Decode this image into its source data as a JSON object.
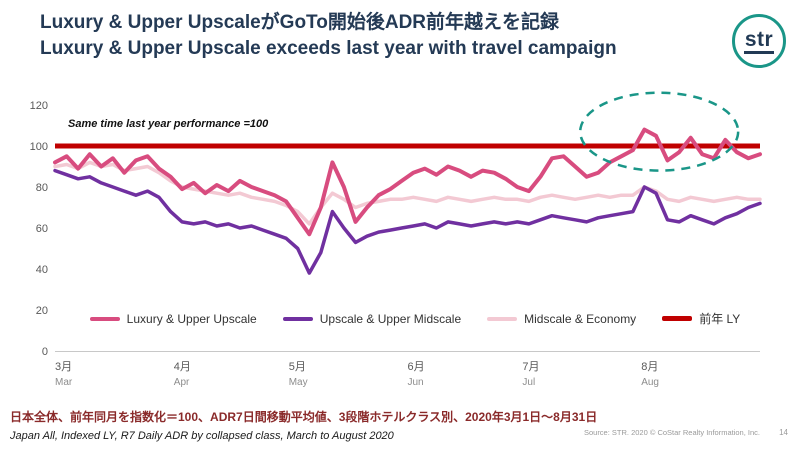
{
  "header": {
    "title_jp": "Luxury & Upper UpscaleがGoTo開始後ADR前年越えを記録",
    "title_en": "Luxury & Upper Upscale exceeds last year with travel campaign"
  },
  "logo": {
    "text": "str"
  },
  "chart_data": {
    "type": "line",
    "annotation": "Same time last year performance =100",
    "ylim": [
      0,
      120
    ],
    "yticks": [
      0,
      20,
      40,
      60,
      80,
      100,
      120
    ],
    "months": [
      {
        "jp": "3月",
        "en": "Mar",
        "frac": 0.0
      },
      {
        "jp": "4月",
        "en": "Apr",
        "frac": 0.1685
      },
      {
        "jp": "5月",
        "en": "May",
        "frac": 0.3315
      },
      {
        "jp": "6月",
        "en": "Jun",
        "frac": 0.5
      },
      {
        "jp": "7月",
        "en": "Jul",
        "frac": 0.663
      },
      {
        "jp": "8月",
        "en": "Aug",
        "frac": 0.8315
      }
    ],
    "x_range": "2020-03-01 to 2020-08-31",
    "series": [
      {
        "name": "Luxury & Upper Upscale",
        "color": "#d84c7f",
        "width": 4,
        "values": [
          92,
          95,
          89,
          96,
          90,
          94,
          87,
          93,
          95,
          89,
          85,
          79,
          82,
          77,
          81,
          78,
          83,
          80,
          78,
          76,
          73,
          65,
          57,
          70,
          92,
          80,
          63,
          70,
          76,
          79,
          83,
          87,
          89,
          86,
          90,
          88,
          85,
          88,
          87,
          84,
          80,
          78,
          85,
          94,
          95,
          90,
          85,
          87,
          92,
          95,
          98,
          108,
          105,
          93,
          97,
          104,
          96,
          94,
          103,
          97,
          94,
          96
        ]
      },
      {
        "name": "Upscale & Upper Midscale",
        "color": "#7030a0",
        "width": 3.5,
        "values": [
          88,
          86,
          84,
          85,
          82,
          80,
          78,
          76,
          78,
          75,
          68,
          63,
          62,
          63,
          61,
          62,
          60,
          61,
          59,
          57,
          55,
          50,
          38,
          48,
          68,
          60,
          53,
          56,
          58,
          59,
          60,
          61,
          62,
          60,
          63,
          62,
          61,
          62,
          63,
          62,
          63,
          62,
          64,
          66,
          65,
          64,
          63,
          65,
          66,
          67,
          68,
          80,
          77,
          64,
          63,
          66,
          64,
          62,
          65,
          67,
          70,
          72
        ]
      },
      {
        "name": "Midscale & Economy",
        "color": "#f3c9d3",
        "width": 3.5,
        "values": [
          90,
          91,
          89,
          92,
          90,
          91,
          88,
          89,
          90,
          87,
          83,
          80,
          79,
          78,
          77,
          76,
          77,
          75,
          74,
          73,
          71,
          68,
          62,
          70,
          77,
          74,
          70,
          72,
          73,
          74,
          74,
          75,
          74,
          73,
          75,
          74,
          73,
          74,
          75,
          74,
          74,
          73,
          75,
          76,
          75,
          74,
          75,
          76,
          75,
          76,
          76,
          80,
          78,
          74,
          73,
          75,
          74,
          73,
          74,
          75,
          74,
          74
        ]
      }
    ],
    "ly": {
      "label": "前年 LY",
      "color": "#c00000",
      "value": 100
    },
    "highlight_ellipse": {
      "cx_frac": 0.857,
      "cy_value": 107,
      "rx_frac": 0.112,
      "ry_value": 19,
      "color": "#1a9688"
    }
  },
  "footer": {
    "note_jp": "日本全体、前年同月を指数化＝100、ADR7日間移動平均値、3段階ホテルクラス別、2020年3月1日〜8月31日",
    "note_en": "Japan All, Indexed LY, R7 Daily ADR by collapsed class, March to August 2020",
    "source": "Source: STR. 2020 © CoStar Realty Information, Inc.",
    "page": "14"
  }
}
